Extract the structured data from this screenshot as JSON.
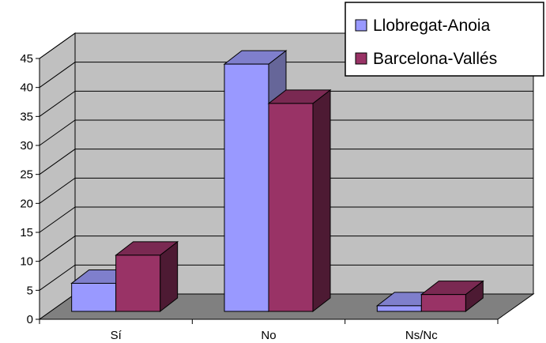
{
  "chart_data": {
    "type": "bar",
    "categories": [
      "Sí",
      "No",
      "Ns/Nc"
    ],
    "series": [
      {
        "name": "Llobregat-Anoia",
        "values": [
          5,
          44,
          1
        ],
        "color": "#9999ff",
        "side": "#666699",
        "top": "#7f7fcc"
      },
      {
        "name": "Barcelona-Vallés",
        "values": [
          10,
          37,
          3
        ],
        "color": "#993366",
        "side": "#4d1a33",
        "top": "#7a2952"
      }
    ],
    "yticks": [
      0,
      5,
      10,
      15,
      20,
      25,
      30,
      35,
      40,
      45
    ],
    "ylim": [
      0,
      45
    ],
    "grid": true,
    "legend": "top-right",
    "wall_color": "#c0c0c0",
    "floor_color": "#808080"
  }
}
